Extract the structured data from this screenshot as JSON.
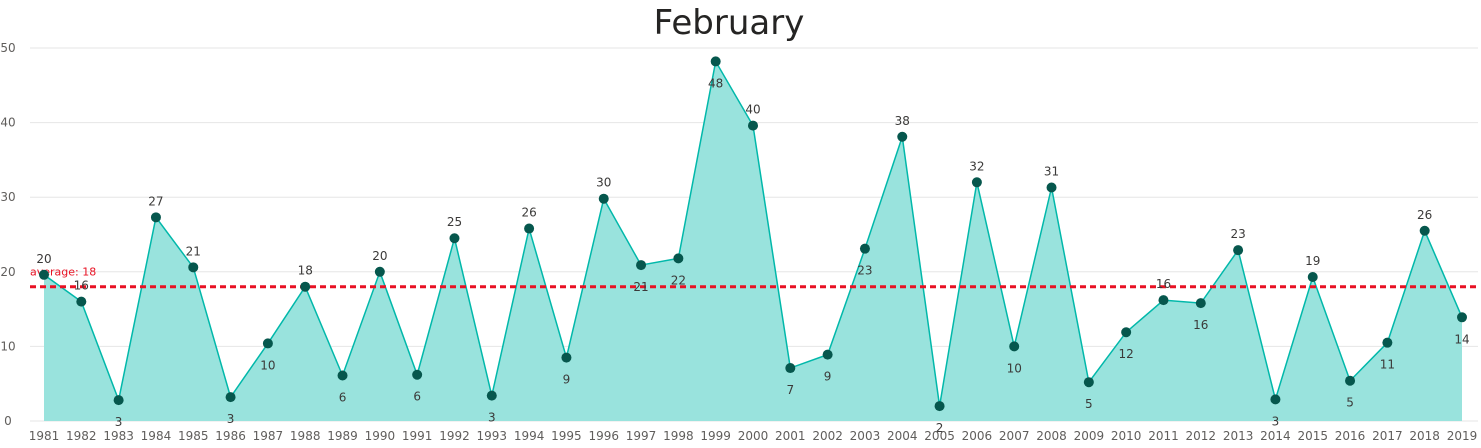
{
  "chart_data": {
    "type": "area",
    "title": "February",
    "xlabel": "",
    "ylabel": "",
    "ylim": [
      0,
      50
    ],
    "yticks": [
      0,
      10,
      20,
      30,
      40,
      50
    ],
    "grid": true,
    "categories": [
      "1981",
      "1982",
      "1983",
      "1984",
      "1985",
      "1986",
      "1987",
      "1988",
      "1989",
      "1990",
      "1991",
      "1992",
      "1993",
      "1994",
      "1995",
      "1996",
      "1997",
      "1998",
      "1999",
      "2000",
      "2001",
      "2002",
      "2003",
      "2004",
      "2005",
      "2006",
      "2007",
      "2008",
      "2009",
      "2010",
      "2011",
      "2012",
      "2013",
      "2014",
      "2015",
      "2016",
      "2017",
      "2018",
      "2019"
    ],
    "series": [
      {
        "values": [
          19.6,
          16,
          2.8,
          27.3,
          20.6,
          3.2,
          10.4,
          18,
          6.1,
          20,
          6.2,
          24.5,
          3.4,
          25.8,
          8.5,
          29.8,
          20.9,
          21.8,
          48.2,
          39.6,
          7.1,
          8.9,
          23.1,
          38.1,
          2.0,
          32.0,
          10.0,
          31.3,
          5.2,
          11.9,
          16.2,
          15.8,
          22.9,
          2.9,
          19.3,
          5.4,
          10.5,
          25.5,
          13.9
        ],
        "labels": [
          "20",
          "16",
          "3",
          "27",
          "21",
          "3",
          "10",
          "18",
          "6",
          "20",
          "6",
          "25",
          "3",
          "26",
          "9",
          "30",
          "21",
          "22",
          "48",
          "40",
          "7",
          "9",
          "23",
          "38",
          "2",
          "32",
          "10",
          "31",
          "5",
          "12",
          "16",
          "16",
          "23",
          "3",
          "19",
          "5",
          "11",
          "26",
          "14"
        ],
        "color": "#01b8aa",
        "fill": "#99e3dd",
        "marker_color": "#06574d"
      }
    ],
    "reference_line": {
      "label": "average: 18",
      "value": 18,
      "color": "#e81123",
      "style": "dashed"
    }
  }
}
